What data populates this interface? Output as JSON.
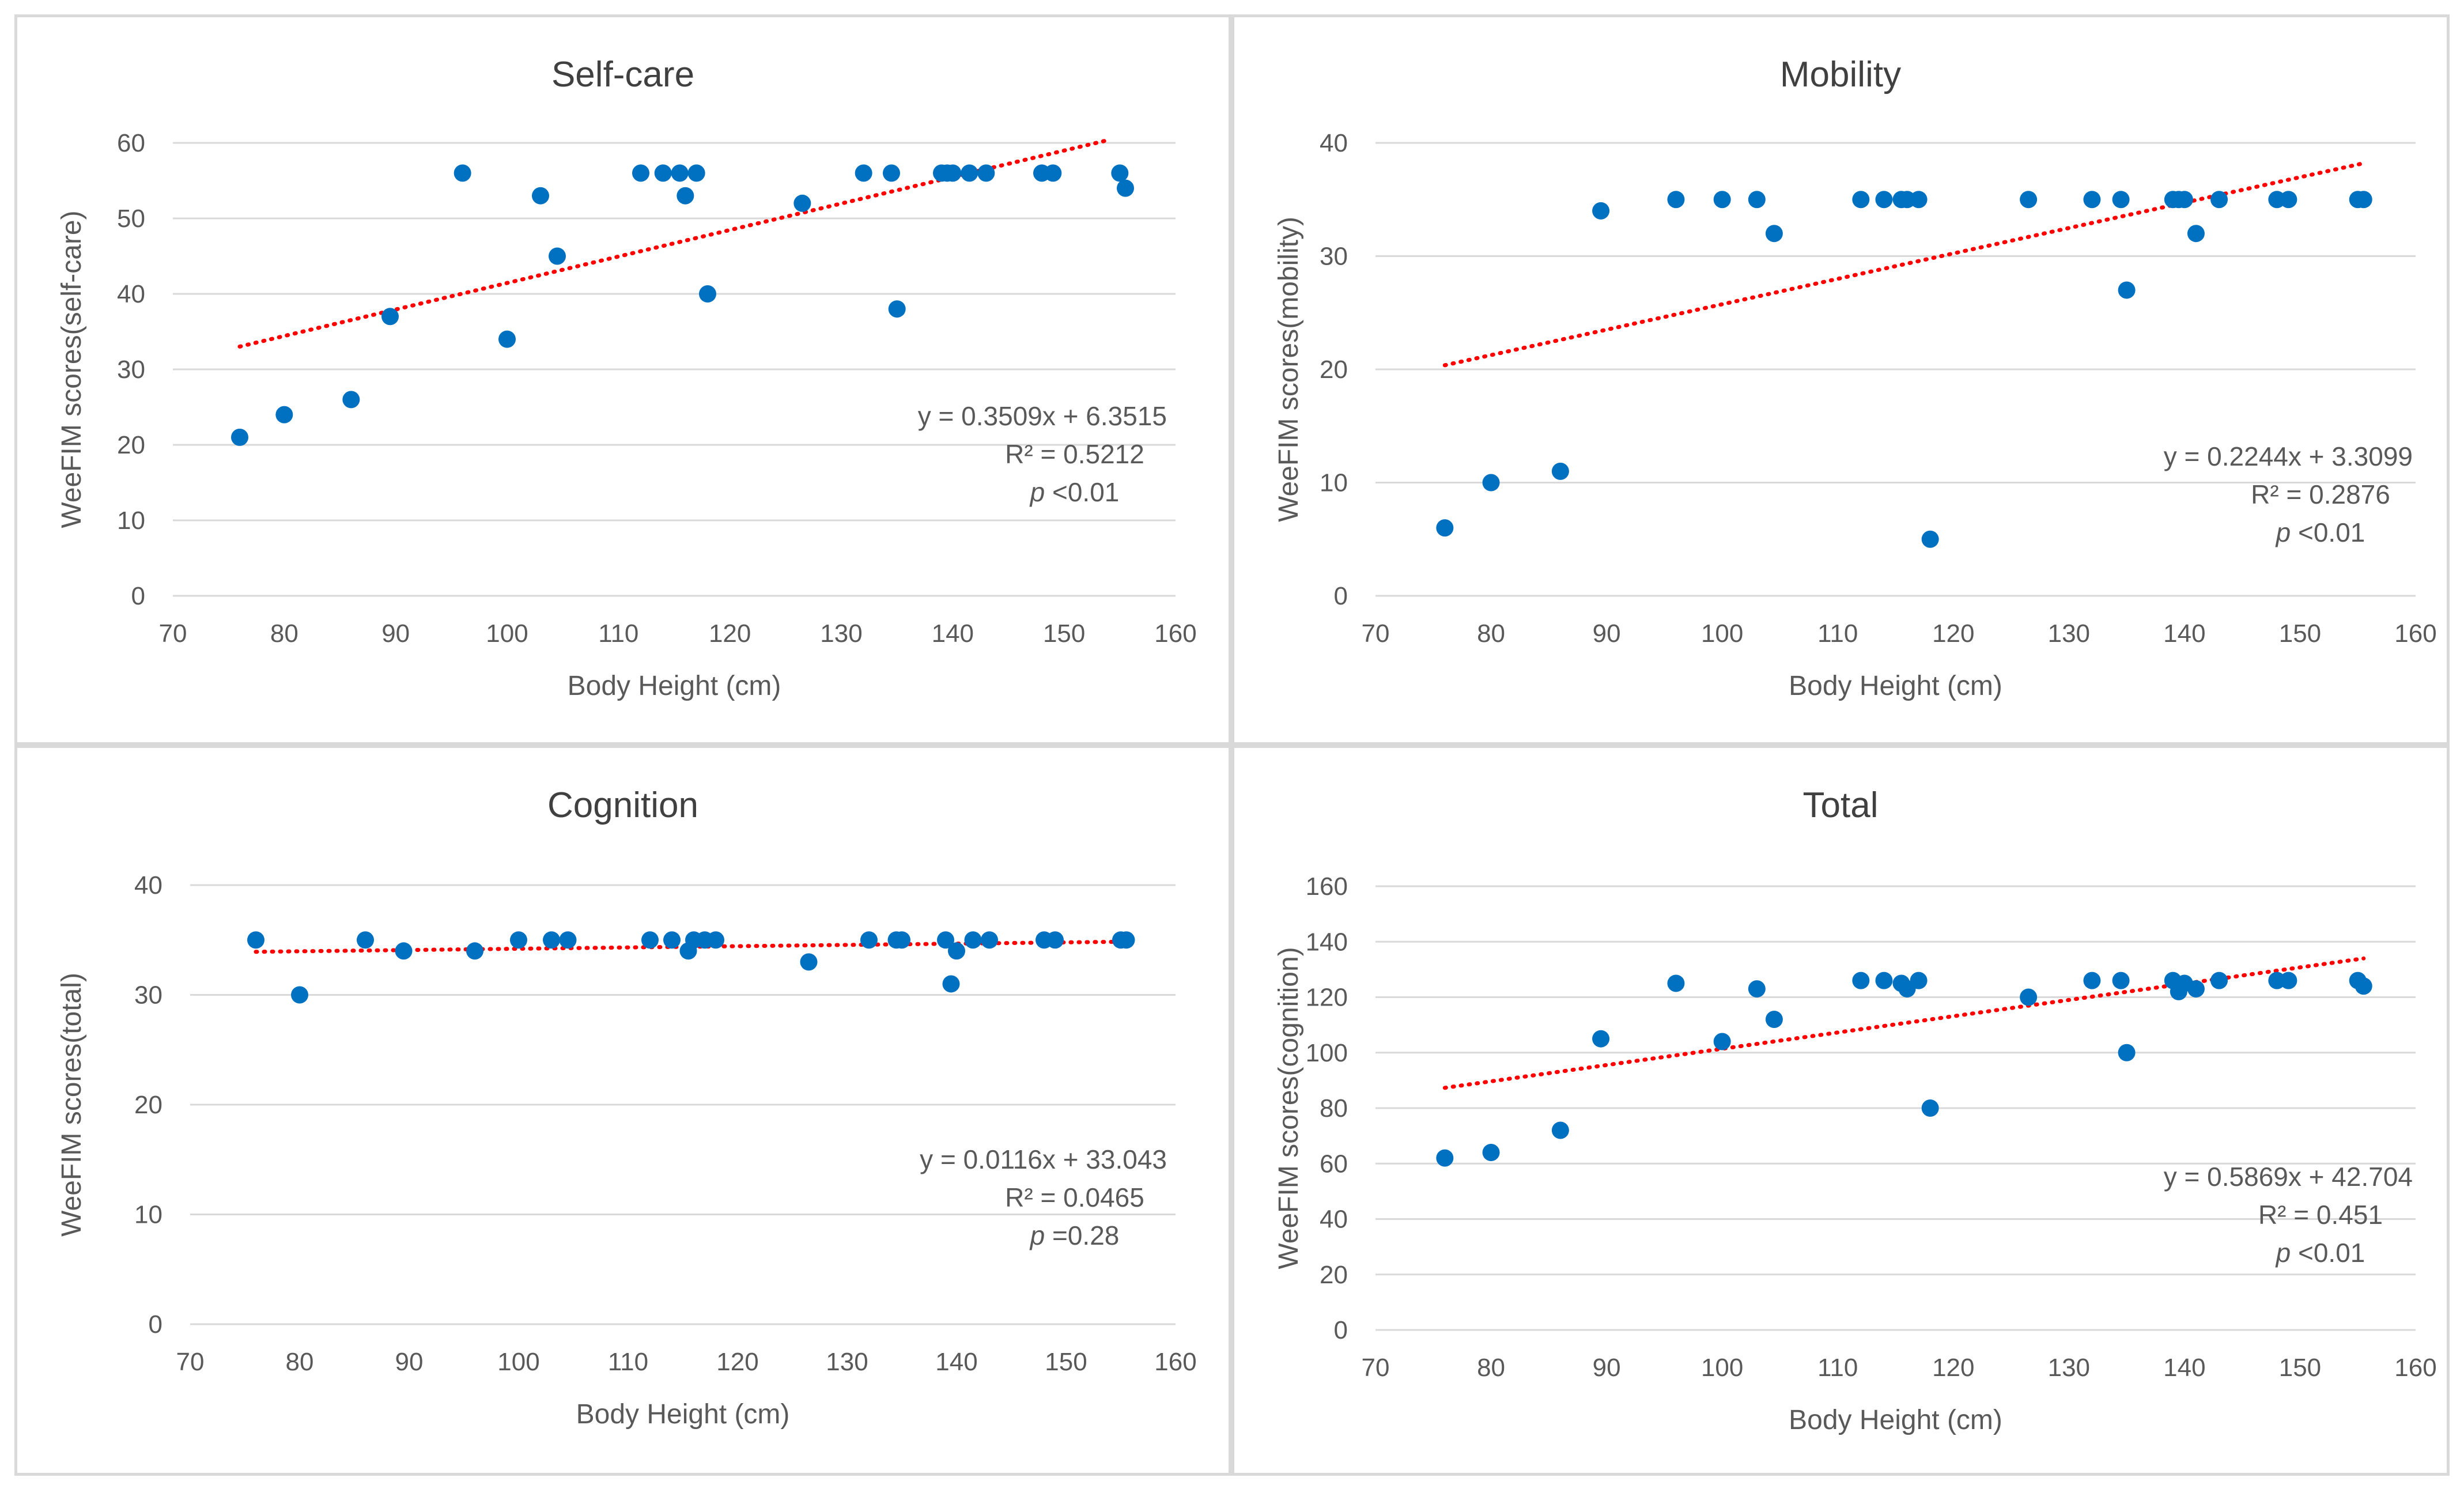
{
  "colors": {
    "points": "#0070c0",
    "trendline": "#ff0000",
    "grid": "#d9d9d9",
    "axis_text": "#595959",
    "title_text": "#404040"
  },
  "chart_data": [
    {
      "type": "scatter",
      "title": "Self-care",
      "xlabel": "Body Height (cm)",
      "ylabel": "WeeFIM scores(self-care)",
      "xlim": [
        70,
        160
      ],
      "ylim": [
        0,
        60
      ],
      "xticks": [
        70,
        80,
        90,
        100,
        110,
        120,
        130,
        140,
        150,
        160
      ],
      "yticks": [
        0,
        10,
        20,
        30,
        40,
        50,
        60
      ],
      "grid": true,
      "series": [
        {
          "name": "Self-care",
          "x": [
            76,
            80,
            86,
            89.5,
            96,
            100,
            103,
            104.5,
            112,
            114,
            115.5,
            116,
            117,
            118,
            126.5,
            132,
            134.5,
            135,
            139,
            139.5,
            140,
            141.5,
            143,
            148,
            149,
            155,
            155.5
          ],
          "y": [
            21,
            24,
            26,
            37,
            56,
            34,
            53,
            45,
            56,
            56,
            56,
            53,
            56,
            40,
            52,
            56,
            56,
            38,
            56,
            56,
            56,
            56,
            56,
            56,
            56,
            56,
            54
          ]
        }
      ],
      "trendline": {
        "type": "linear",
        "x_range": [
          76,
          154
        ],
        "slope": 0.3509,
        "intercept": 6.3515
      },
      "annotations": {
        "equation": "y = 0.3509x + 6.3515",
        "r2": "R² = 0.5212",
        "p_label": "p",
        "p_value": " <0.01"
      }
    },
    {
      "type": "scatter",
      "title": "Mobility",
      "xlabel": "Body Height (cm)",
      "ylabel": "WeeFIM scores(mobility)",
      "xlim": [
        70,
        160
      ],
      "ylim": [
        0,
        40
      ],
      "xticks": [
        70,
        80,
        90,
        100,
        110,
        120,
        130,
        140,
        150,
        160
      ],
      "yticks": [
        0,
        10,
        20,
        30,
        40
      ],
      "grid": true,
      "series": [
        {
          "name": "Mobility",
          "x": [
            76,
            80,
            86,
            89.5,
            96,
            100,
            103,
            104.5,
            112,
            114,
            115.5,
            116,
            117,
            118,
            126.5,
            132,
            134.5,
            135,
            139,
            139.5,
            140,
            141,
            143,
            148,
            149,
            155,
            155.5
          ],
          "y": [
            6,
            10,
            11,
            34,
            35,
            35,
            35,
            32,
            35,
            35,
            35,
            35,
            35,
            5,
            35,
            35,
            35,
            27,
            35,
            35,
            35,
            32,
            35,
            35,
            35,
            35,
            35
          ]
        }
      ],
      "trendline": {
        "type": "linear",
        "x_range": [
          76,
          155.5
        ],
        "slope": 0.2244,
        "intercept": 3.3099
      },
      "annotations": {
        "equation": "y = 0.2244x + 3.3099",
        "r2": "R² = 0.2876",
        "p_label": "p",
        "p_value": " <0.01"
      }
    },
    {
      "type": "scatter",
      "title": "Cognition",
      "xlabel": "Body Height (cm)",
      "ylabel": "WeeFIM scores(total)",
      "xlim": [
        70,
        160
      ],
      "ylim": [
        0,
        40
      ],
      "xticks": [
        70,
        80,
        90,
        100,
        110,
        120,
        130,
        140,
        150,
        160
      ],
      "yticks": [
        0,
        10,
        20,
        30,
        40
      ],
      "grid": true,
      "series": [
        {
          "name": "Cognition",
          "x": [
            76,
            80,
            86,
            89.5,
            96,
            100,
            103,
            104.5,
            112,
            114,
            115.5,
            116,
            117,
            118,
            126.5,
            132,
            134.5,
            135,
            139,
            139.5,
            140,
            141.5,
            143,
            148,
            149,
            155,
            155.5
          ],
          "y": [
            35,
            30,
            35,
            34,
            34,
            35,
            35,
            35,
            35,
            35,
            34,
            35,
            35,
            35,
            33,
            35,
            35,
            35,
            35,
            31,
            34,
            35,
            35,
            35,
            35,
            35,
            35
          ]
        }
      ],
      "trendline": {
        "type": "linear",
        "x_range": [
          76,
          155.5
        ],
        "slope": 0.0116,
        "intercept": 33.043
      },
      "annotations": {
        "equation": "y = 0.0116x + 33.043",
        "r2": "R² = 0.0465",
        "p_label": "p",
        "p_value": " =0.28"
      }
    },
    {
      "type": "scatter",
      "title": "Total",
      "xlabel": "Body Height (cm)",
      "ylabel": "WeeFIM scores(cognition)",
      "xlim": [
        70,
        160
      ],
      "ylim": [
        0,
        160
      ],
      "xticks": [
        70,
        80,
        90,
        100,
        110,
        120,
        130,
        140,
        150,
        160
      ],
      "yticks": [
        0,
        20,
        40,
        60,
        80,
        100,
        120,
        140,
        160
      ],
      "grid": true,
      "series": [
        {
          "name": "Total",
          "x": [
            76,
            80,
            86,
            89.5,
            96,
            100,
            103,
            104.5,
            112,
            114,
            115.5,
            116,
            117,
            118,
            126.5,
            132,
            134.5,
            135,
            139,
            139.5,
            140,
            141,
            143,
            148,
            149,
            155,
            155.5
          ],
          "y": [
            62,
            64,
            72,
            105,
            125,
            104,
            123,
            112,
            126,
            126,
            125,
            123,
            126,
            80,
            120,
            126,
            126,
            100,
            126,
            122,
            125,
            123,
            126,
            126,
            126,
            126,
            124
          ]
        }
      ],
      "trendline": {
        "type": "linear",
        "x_range": [
          76,
          155.5
        ],
        "slope": 0.5869,
        "intercept": 42.704
      },
      "annotations": {
        "equation": "y = 0.5869x + 42.704",
        "r2": "R² = 0.451",
        "p_label": "p",
        "p_value": " <0.01"
      }
    }
  ]
}
